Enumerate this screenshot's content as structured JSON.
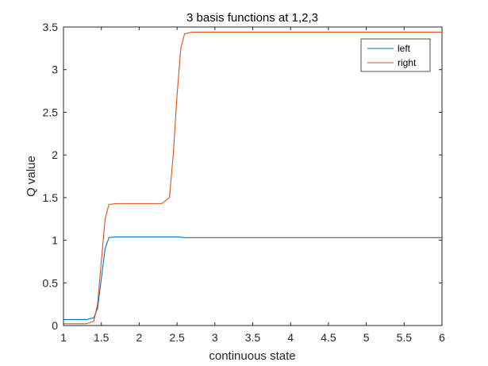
{
  "chart_data": {
    "type": "line",
    "title": "3 basis functions at 1,2,3",
    "xlabel": "continuous state",
    "ylabel": "Q value",
    "xlim": [
      1,
      6
    ],
    "ylim": [
      0,
      3.5
    ],
    "xticks": [
      1,
      1.5,
      2,
      2.5,
      3,
      3.5,
      4,
      4.5,
      5,
      5.5,
      6
    ],
    "xtick_labels": [
      "1",
      "1.5",
      "2",
      "2.5",
      "3",
      "3.5",
      "4",
      "4.5",
      "5",
      "5.5",
      "6"
    ],
    "yticks": [
      0,
      0.5,
      1,
      1.5,
      2,
      2.5,
      3,
      3.5
    ],
    "ytick_labels": [
      "0",
      "0.5",
      "1",
      "1.5",
      "2",
      "2.5",
      "3",
      "3.5"
    ],
    "grid": false,
    "legend": "top-right",
    "series": [
      {
        "name": "left",
        "color": "#0072BD",
        "x": [
          1,
          1.3,
          1.4,
          1.45,
          1.5,
          1.55,
          1.6,
          1.7,
          1.8,
          2.0,
          2.3,
          2.5,
          2.6,
          3.0,
          4.0,
          5.0,
          6.0
        ],
        "y": [
          0.07,
          0.07,
          0.09,
          0.2,
          0.55,
          0.9,
          1.03,
          1.04,
          1.04,
          1.04,
          1.04,
          1.04,
          1.03,
          1.03,
          1.03,
          1.03,
          1.03
        ]
      },
      {
        "name": "right",
        "color": "#D95319",
        "x": [
          1,
          1.3,
          1.4,
          1.45,
          1.5,
          1.55,
          1.6,
          1.7,
          1.8,
          2.0,
          2.3,
          2.4,
          2.45,
          2.5,
          2.55,
          2.6,
          2.7,
          3.0,
          4.0,
          5.0,
          6.0
        ],
        "y": [
          0.02,
          0.02,
          0.05,
          0.25,
          0.75,
          1.25,
          1.42,
          1.43,
          1.43,
          1.43,
          1.43,
          1.5,
          2.0,
          2.7,
          3.25,
          3.42,
          3.44,
          3.44,
          3.44,
          3.44,
          3.44
        ]
      }
    ]
  }
}
